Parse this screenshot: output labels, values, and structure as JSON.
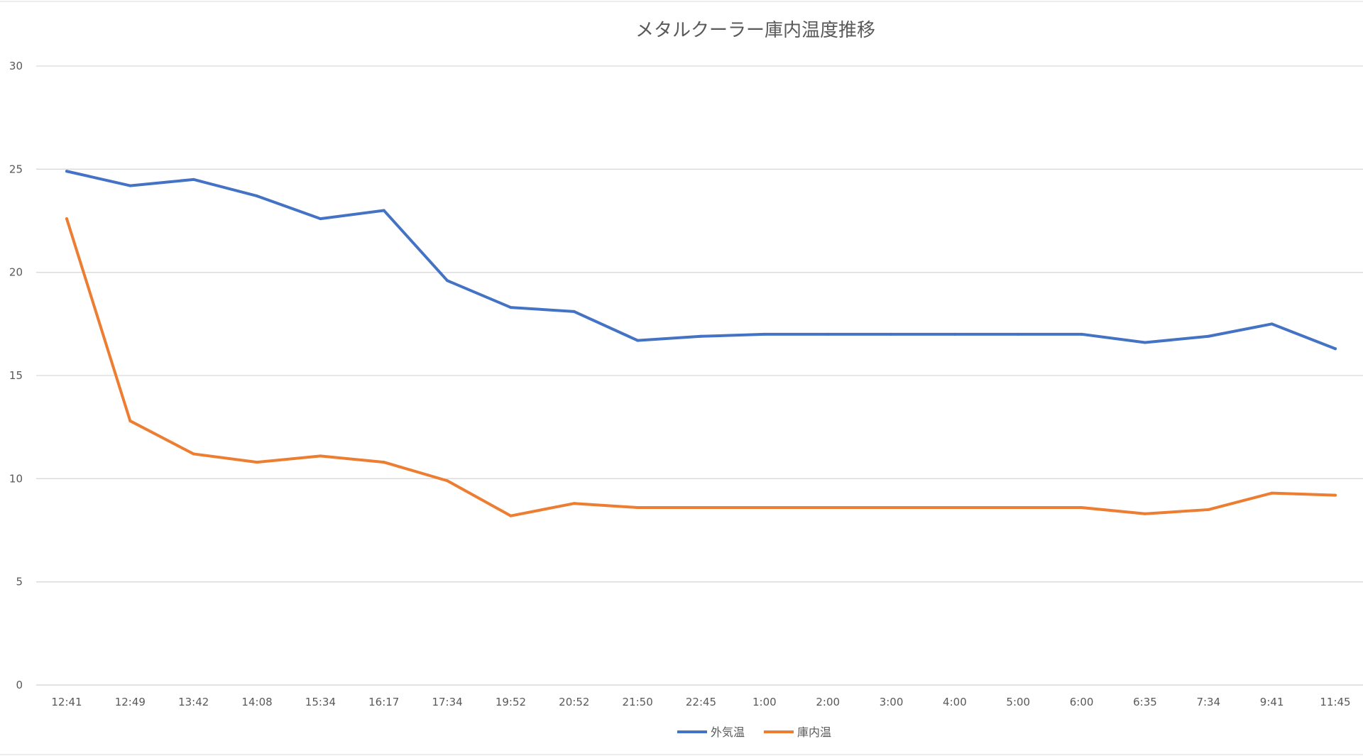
{
  "chart_data": {
    "type": "line",
    "title": "メタルクーラー庫内温度推移",
    "xlabel": "",
    "ylabel": "",
    "categories": [
      "12:41",
      "12:49",
      "13:42",
      "14:08",
      "15:34",
      "16:17",
      "17:34",
      "19:52",
      "20:52",
      "21:50",
      "22:45",
      "1:00",
      "2:00",
      "3:00",
      "4:00",
      "5:00",
      "6:00",
      "6:35",
      "7:34",
      "9:41",
      "11:45"
    ],
    "ylim": [
      0,
      30
    ],
    "yticks": [
      0,
      5,
      10,
      15,
      20,
      25,
      30
    ],
    "grid": true,
    "legend": "bottom",
    "series": [
      {
        "name": "外気温",
        "color": "#4472C4",
        "values": [
          24.9,
          24.2,
          24.5,
          23.7,
          22.6,
          23.0,
          19.6,
          18.3,
          18.1,
          16.7,
          16.9,
          17.0,
          17.0,
          17.0,
          17.0,
          17.0,
          17.0,
          16.6,
          16.9,
          17.5,
          16.3
        ]
      },
      {
        "name": "庫内温",
        "color": "#ED7D31",
        "values": [
          22.6,
          12.8,
          11.2,
          10.8,
          11.1,
          10.8,
          9.9,
          8.2,
          8.8,
          8.6,
          8.6,
          8.6,
          8.6,
          8.6,
          8.6,
          8.6,
          8.6,
          8.3,
          8.5,
          9.3,
          9.2
        ]
      }
    ]
  }
}
